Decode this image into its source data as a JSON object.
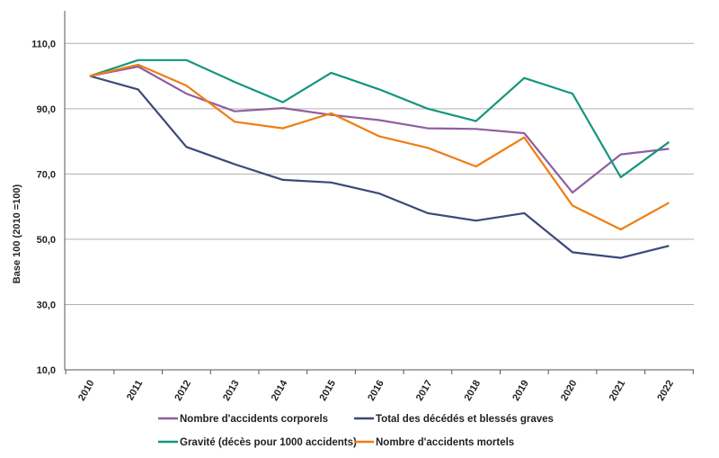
{
  "chart_data": {
    "type": "line",
    "ylabel": "Base 100 (2010 =100)",
    "xlabel": "",
    "title": "",
    "ylim": [
      10,
      120
    ],
    "yticks": [
      "10,0",
      "30,0",
      "50,0",
      "70,0",
      "90,0",
      "110,0"
    ],
    "ytick_values": [
      10,
      30,
      50,
      70,
      90,
      110
    ],
    "categories": [
      "2010",
      "2011",
      "2012",
      "2013",
      "2014",
      "2015",
      "2016",
      "2017",
      "2018",
      "2019",
      "2020",
      "2021",
      "2022"
    ],
    "grid": true,
    "legend_position": "bottom",
    "series": [
      {
        "name": "Nombre d'accidents corporels",
        "color": "#8f5fa0",
        "values": [
          100.0,
          102.9,
          94.6,
          89.2,
          90.2,
          88.1,
          86.5,
          84.0,
          83.8,
          82.5,
          64.3,
          76.0,
          77.7
        ]
      },
      {
        "name": "Total des décédés et blessés graves",
        "color": "#3c4878",
        "values": [
          100.0,
          95.9,
          78.3,
          73.0,
          68.2,
          67.4,
          64.0,
          58.0,
          55.7,
          58.0,
          46.0,
          44.3,
          48.0
        ]
      },
      {
        "name": "Gravité (décès pour 1000 accidents)",
        "color": "#13967c",
        "values": [
          100.0,
          104.9,
          104.9,
          98.2,
          92.0,
          101.0,
          95.9,
          90.0,
          86.2,
          99.4,
          94.6,
          69.0,
          79.8
        ]
      },
      {
        "name": "Nombre d'accidents mortels",
        "color": "#ef7d14",
        "values": [
          100.0,
          103.5,
          97.1,
          86.0,
          84.0,
          88.6,
          81.5,
          78.0,
          72.3,
          81.2,
          60.3,
          53.0,
          61.2
        ]
      }
    ]
  }
}
